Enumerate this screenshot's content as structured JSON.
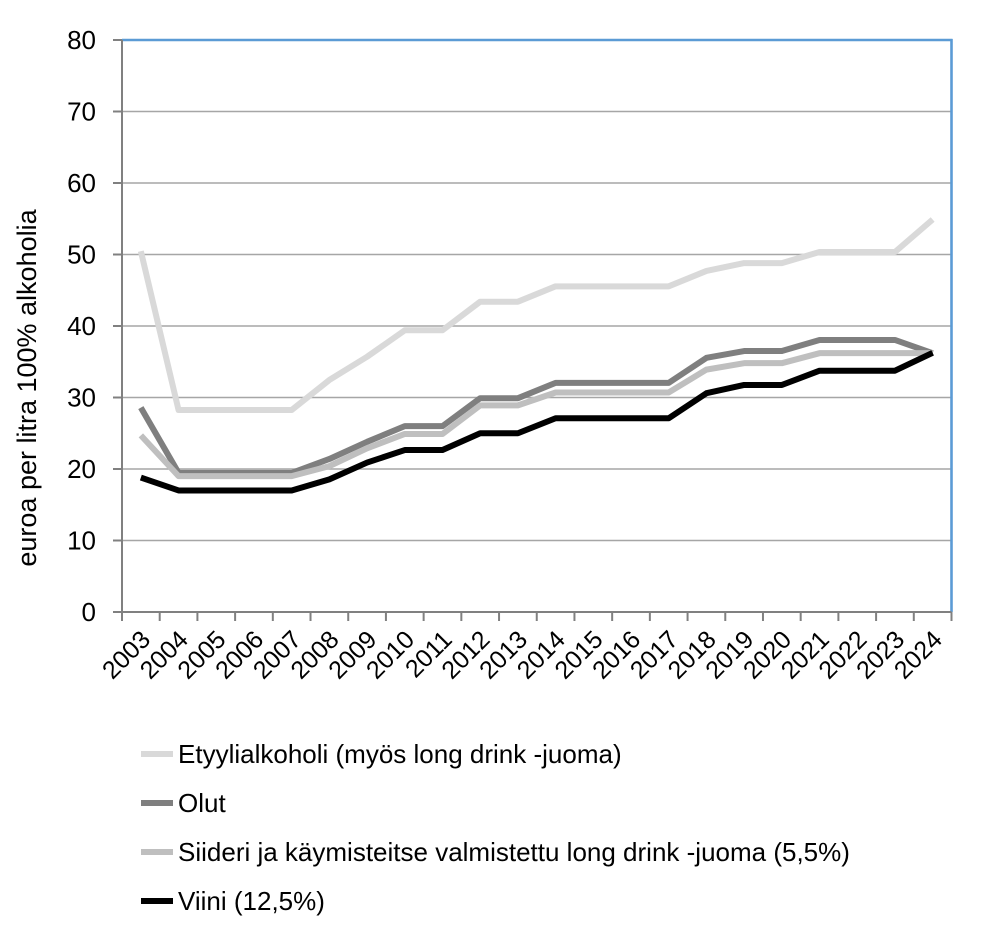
{
  "colors": {
    "background": "#FFFFFF",
    "gridline": "#A6A6A6",
    "axis": "#808080",
    "plot_border": "#5B9BD5",
    "text": "#000000"
  },
  "chart_data": {
    "type": "line",
    "title": "",
    "xlabel": "",
    "ylabel": "euroa per litra 100% alkoholia",
    "ylim": [
      0,
      80
    ],
    "yticks": [
      0,
      10,
      20,
      30,
      40,
      50,
      60,
      70,
      80
    ],
    "grid": true,
    "legend_position": "bottom-left",
    "x": [
      "2003",
      "2004",
      "2005",
      "2006",
      "2007",
      "2008",
      "2009",
      "2010",
      "2011",
      "2012",
      "2013",
      "2014",
      "2015",
      "2016",
      "2017",
      "2018",
      "2019",
      "2020",
      "2021",
      "2022",
      "2023",
      "2024"
    ],
    "series": [
      {
        "name": "Etyylialkoholi (myös long drink -juoma)",
        "color": "#D9D9D9",
        "values": [
          50.46,
          28.25,
          28.25,
          28.25,
          28.25,
          32.45,
          35.7,
          39.4,
          39.4,
          43.4,
          43.4,
          45.55,
          45.55,
          45.55,
          45.55,
          47.7,
          48.8,
          48.8,
          50.35,
          50.35,
          50.35,
          54.9
        ]
      },
      {
        "name": "Olut",
        "color": "#7F7F7F",
        "values": [
          28.59,
          19.45,
          19.45,
          19.45,
          19.45,
          21.4,
          23.8,
          26.0,
          26.0,
          29.9,
          29.9,
          32.05,
          32.05,
          32.05,
          32.05,
          35.55,
          36.5,
          36.5,
          38.05,
          38.05,
          38.05,
          36.2
        ]
      },
      {
        "name": "Siideri ja käymisteitse valmistettu long drink -juoma (5,5%)",
        "color": "#BFBFBF",
        "values": [
          24.7,
          19.0,
          19.0,
          19.0,
          19.0,
          20.4,
          22.9,
          24.9,
          24.9,
          28.9,
          28.9,
          30.7,
          30.7,
          30.7,
          30.7,
          33.9,
          34.8,
          34.8,
          36.2,
          36.2,
          36.2,
          36.2
        ]
      },
      {
        "name": "Viini (12,5%)",
        "color": "#000000",
        "values": [
          18.8,
          17.0,
          17.0,
          17.0,
          17.0,
          18.55,
          20.9,
          22.65,
          22.65,
          25.0,
          25.0,
          27.1,
          27.1,
          27.1,
          27.1,
          30.6,
          31.75,
          31.75,
          33.75,
          33.75,
          33.75,
          36.25
        ]
      }
    ]
  }
}
